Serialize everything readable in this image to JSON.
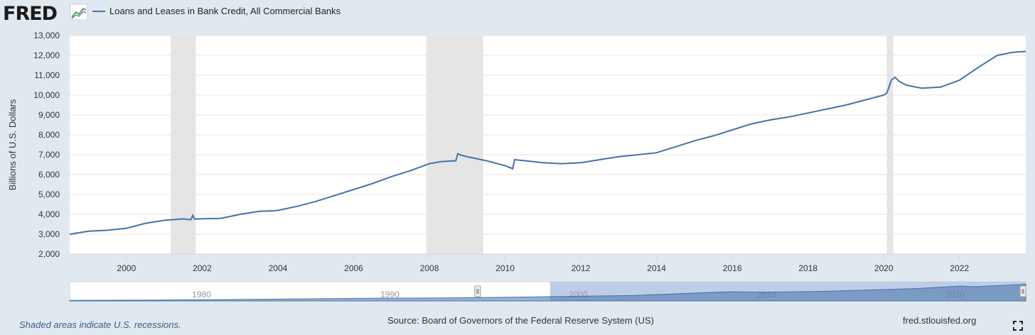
{
  "logo": {
    "text": "FRED"
  },
  "footer": {
    "note": "Shaded areas indicate U.S. recessions.",
    "source": "Source: Board of Governors of the Federal Reserve System (US)",
    "url": "fred.stlouisfed.org"
  },
  "colors": {
    "series": "#4572a7",
    "recession": "#e5e5e5",
    "background": "#e1e9f0",
    "plot_bg": "#ffffff",
    "navigator_selection": "#b3c4e3"
  },
  "icons": {
    "fullscreen": "fullscreen-icon",
    "logo_graph": "chart-line-icon"
  },
  "chart_data": {
    "type": "line",
    "title": "",
    "xlabel": "",
    "ylabel": "Billions of U.S. Dollars",
    "xlim": [
      1998.5,
      2023.75
    ],
    "ylim": [
      2000,
      13000
    ],
    "yticks": [
      2000,
      3000,
      4000,
      5000,
      6000,
      7000,
      8000,
      9000,
      10000,
      11000,
      12000,
      13000
    ],
    "ytick_labels": [
      "2,000",
      "3,000",
      "4,000",
      "5,000",
      "6,000",
      "7,000",
      "8,000",
      "9,000",
      "10,000",
      "11,000",
      "12,000",
      "13,000"
    ],
    "xticks": [
      2000,
      2002,
      2004,
      2006,
      2008,
      2010,
      2012,
      2014,
      2016,
      2018,
      2020,
      2022
    ],
    "xtick_labels": [
      "2000",
      "2002",
      "2004",
      "2006",
      "2008",
      "2010",
      "2012",
      "2014",
      "2016",
      "2018",
      "2020",
      "2022"
    ],
    "grid": true,
    "legend": "top-left",
    "recessions": [
      [
        2001.17,
        2001.83
      ],
      [
        2007.92,
        2009.42
      ],
      [
        2020.08,
        2020.25
      ]
    ],
    "series": [
      {
        "name": "Loans and Leases in Bank Credit, All Commercial Banks",
        "x": [
          1998.5,
          1999.0,
          1999.5,
          2000.0,
          2000.5,
          2001.0,
          2001.5,
          2001.7,
          2001.75,
          2001.8,
          2002.0,
          2002.5,
          2003.0,
          2003.5,
          2003.9,
          2004.0,
          2004.5,
          2005.0,
          2005.5,
          2006.0,
          2006.5,
          2007.0,
          2007.5,
          2008.0,
          2008.3,
          2008.7,
          2008.75,
          2008.8,
          2009.0,
          2009.5,
          2010.0,
          2010.2,
          2010.25,
          2010.5,
          2011.0,
          2011.5,
          2012.0,
          2012.5,
          2013.0,
          2013.5,
          2014.0,
          2014.5,
          2015.0,
          2015.5,
          2016.0,
          2016.5,
          2017.0,
          2017.5,
          2018.0,
          2018.5,
          2019.0,
          2019.5,
          2020.0,
          2020.08,
          2020.2,
          2020.3,
          2020.4,
          2020.6,
          2021.0,
          2021.5,
          2022.0,
          2022.5,
          2023.0,
          2023.4,
          2023.75
        ],
        "values": [
          3000,
          3150,
          3200,
          3300,
          3550,
          3700,
          3770,
          3730,
          3950,
          3760,
          3780,
          3800,
          4000,
          4150,
          4180,
          4200,
          4400,
          4650,
          4950,
          5250,
          5550,
          5900,
          6200,
          6550,
          6650,
          6700,
          7050,
          7000,
          6900,
          6700,
          6450,
          6300,
          6750,
          6700,
          6600,
          6550,
          6600,
          6750,
          6900,
          7000,
          7100,
          7400,
          7700,
          7950,
          8250,
          8550,
          8750,
          8900,
          9100,
          9300,
          9500,
          9750,
          10000,
          10100,
          10750,
          10900,
          10700,
          10500,
          10350,
          10400,
          10750,
          11400,
          12000,
          12150,
          12200
        ]
      }
    ]
  },
  "navigator": {
    "tick_labels": [
      "1980",
      "1990",
      "2000",
      "2010",
      "2020"
    ],
    "tick_years": [
      1980,
      1990,
      2000,
      2010,
      2020
    ],
    "range": [
      1973,
      2023.75
    ],
    "selected": [
      1998.5,
      2023.75
    ],
    "series_x": [
      1973,
      1978,
      1983,
      1988,
      1993,
      1998,
      2003,
      2008,
      2010,
      2013,
      2018,
      2020.3,
      2021,
      2023.75
    ],
    "series_values": [
      400,
      700,
      1200,
      1800,
      2200,
      3000,
      4000,
      6700,
      6400,
      7000,
      9100,
      10900,
      10400,
      12200
    ]
  }
}
